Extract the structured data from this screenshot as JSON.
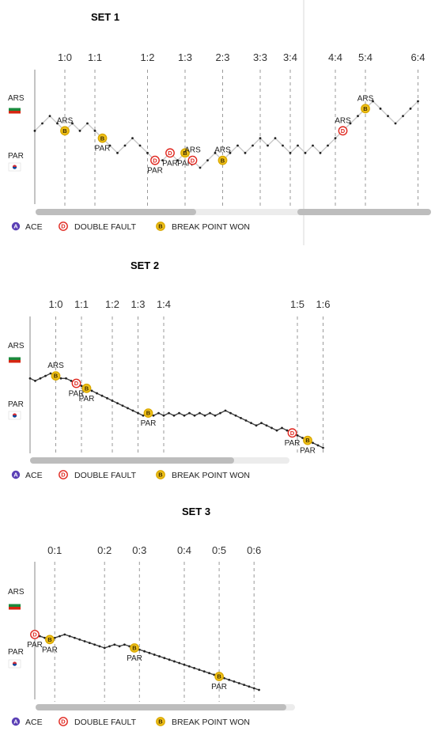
{
  "legend": {
    "ace": "ACE",
    "double_fault": "DOUBLE FAULT",
    "break_point": "BREAK POINT WON"
  },
  "players": {
    "top": "ARS",
    "bottom": "PAR"
  },
  "colors": {
    "ace": "#5a3fb5",
    "double_fault": "#e0271f",
    "break_point": "#f1c21b",
    "line_set1": "#c8c8c8",
    "line_other": "#444444",
    "scrollbar": "#bdbdbd",
    "scroll_track": "#ececec"
  },
  "chart_data": [
    {
      "type": "line",
      "title": "SET 1",
      "games": [
        "1:0",
        "1:1",
        "1:2",
        "1:3",
        "2:3",
        "3:3",
        "3:4",
        "4:4",
        "5:4",
        "6:4"
      ],
      "points_per_game": [
        4,
        4,
        7,
        5,
        5,
        5,
        4,
        6,
        4,
        7
      ],
      "momentum": [
        2,
        4,
        6,
        4,
        2,
        4,
        2,
        4,
        2,
        0,
        -2,
        -4,
        -2,
        0,
        -2,
        -4,
        -6,
        -6,
        -4,
        -6,
        -4,
        -6,
        -8,
        -6,
        -4,
        -6,
        -4,
        -2,
        -4,
        -2,
        0,
        -2,
        0,
        -2,
        -4,
        -2,
        -4,
        -2,
        -4,
        -2,
        0,
        2,
        4,
        6,
        8,
        10,
        8,
        6,
        4,
        6,
        8,
        10
      ],
      "events": [
        {
          "type": "B",
          "label": "ARS",
          "label_pos": "above",
          "point": 4
        },
        {
          "type": "B",
          "label": "PAR",
          "label_pos": "below",
          "point": 9
        },
        {
          "type": "D",
          "label": "PAR",
          "label_pos": "below",
          "point": 16
        },
        {
          "type": "D",
          "label": "PAR",
          "label_pos": "below",
          "point": 18
        },
        {
          "type": "B",
          "label": "PAR",
          "label_pos": "below",
          "point": 20
        },
        {
          "type": "D",
          "label": "ARS",
          "label_pos": "above",
          "point": 21
        },
        {
          "type": "B",
          "label": "ARS",
          "label_pos": "above",
          "point": 25
        },
        {
          "type": "D",
          "label": "ARS",
          "label_pos": "above",
          "point": 41
        },
        {
          "type": "B",
          "label": "ARS",
          "label_pos": "above",
          "point": 44
        }
      ]
    },
    {
      "type": "line",
      "title": "SET 2",
      "games": [
        "1:0",
        "1:1",
        "1:2",
        "1:3",
        "1:4",
        "1:5",
        "1:6"
      ],
      "points_per_game": [
        5,
        5,
        6,
        5,
        5,
        26,
        6
      ],
      "momentum": [
        0,
        -1,
        0,
        1,
        2,
        1,
        0,
        0,
        -1,
        -2,
        -3,
        -4,
        -5,
        -6,
        -7,
        -8,
        -9,
        -10,
        -11,
        -12,
        -13,
        -14,
        -15,
        -14,
        -15,
        -14,
        -15,
        -14,
        -15,
        -14,
        -15,
        -14,
        -15,
        -14,
        -15,
        -14,
        -15,
        -14,
        -13,
        -14,
        -15,
        -16,
        -17,
        -18,
        -19,
        -18,
        -19,
        -20,
        -21,
        -20,
        -21,
        -22,
        -23,
        -24,
        -25,
        -26,
        -27,
        -28
      ],
      "events": [
        {
          "type": "B",
          "label": "ARS",
          "label_pos": "above",
          "point": 5
        },
        {
          "type": "D",
          "label": "PAR",
          "label_pos": "below",
          "point": 9
        },
        {
          "type": "B",
          "label": "PAR",
          "label_pos": "below",
          "point": 11
        },
        {
          "type": "B",
          "label": "PAR",
          "label_pos": "below",
          "point": 23
        },
        {
          "type": "D",
          "label": "PAR",
          "label_pos": "below",
          "point": 51
        },
        {
          "type": "B",
          "label": "PAR",
          "label_pos": "below",
          "point": 54
        }
      ]
    },
    {
      "type": "line",
      "title": "SET 3",
      "games": [
        "0:1",
        "0:2",
        "0:3",
        "0:4",
        "0:5",
        "0:6"
      ],
      "points_per_game": [
        4,
        10,
        7,
        9,
        7,
        7
      ],
      "momentum": [
        0,
        -1,
        -2,
        -3,
        -2,
        -1,
        0,
        -1,
        -2,
        -3,
        -4,
        -5,
        -6,
        -7,
        -8,
        -7,
        -6,
        -7,
        -6,
        -7,
        -8,
        -9,
        -10,
        -11,
        -12,
        -13,
        -14,
        -15,
        -16,
        -17,
        -18,
        -19,
        -20,
        -21,
        -22,
        -23,
        -24,
        -25,
        -26,
        -27,
        -28,
        -29,
        -30,
        -31,
        -32,
        -33
      ],
      "events": [
        {
          "type": "D",
          "label": "PAR",
          "label_pos": "below",
          "point": 0
        },
        {
          "type": "B",
          "label": "PAR",
          "label_pos": "below",
          "point": 3
        },
        {
          "type": "B",
          "label": "PAR",
          "label_pos": "below",
          "point": 20
        },
        {
          "type": "B",
          "label": "PAR",
          "label_pos": "below",
          "point": 37
        }
      ]
    }
  ]
}
